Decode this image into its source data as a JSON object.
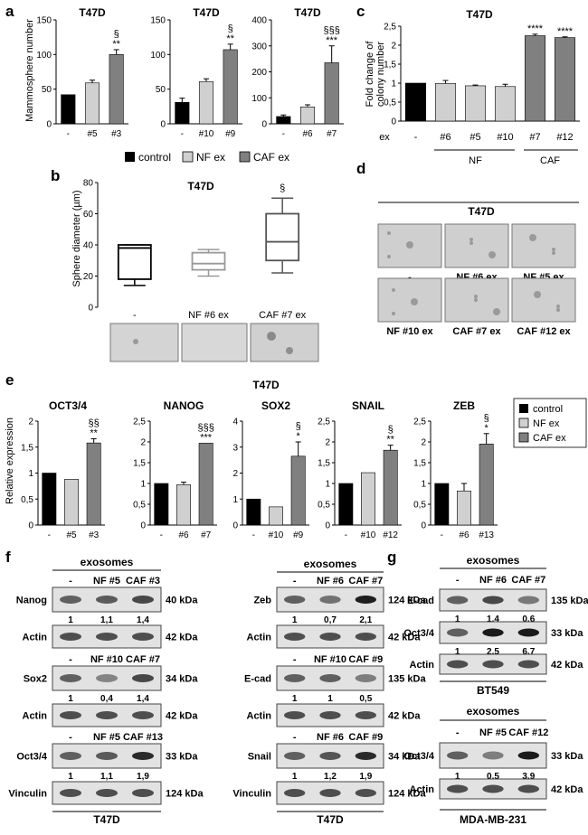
{
  "colors": {
    "control": "#000000",
    "nf": "#d0d0d0",
    "caf": "#808080",
    "blot_bg": "#e2e2e2",
    "band": "#1a1a1a"
  },
  "legend": {
    "control": "control",
    "nf": "NF ex",
    "caf": "CAF ex"
  },
  "panel_a": {
    "letter": "a",
    "ylabel": "Mammosphere number",
    "charts": [
      {
        "title": "T47D",
        "type": "bar",
        "categories": [
          "-",
          "#5",
          "#3"
        ],
        "values": [
          42,
          59,
          100
        ],
        "errors": [
          0,
          4,
          7
        ],
        "ylim": [
          0,
          150
        ],
        "ticks": [
          0,
          50,
          100,
          150
        ],
        "annot": [
          "",
          "",
          "**"
        ],
        "sig": [
          "",
          "",
          "§"
        ]
      },
      {
        "title": "T47D",
        "type": "bar",
        "categories": [
          "-",
          "#10",
          "#9"
        ],
        "values": [
          31,
          61,
          107
        ],
        "errors": [
          6,
          4,
          8
        ],
        "ylim": [
          0,
          150
        ],
        "ticks": [
          0,
          50,
          100,
          150
        ],
        "annot": [
          "",
          "",
          "**"
        ],
        "sig": [
          "",
          "",
          "§"
        ]
      },
      {
        "title": "T47D",
        "type": "bar",
        "categories": [
          "-",
          "#6",
          "#7"
        ],
        "values": [
          28,
          65,
          235
        ],
        "errors": [
          6,
          8,
          65
        ],
        "ylim": [
          0,
          400
        ],
        "ticks": [
          0,
          100,
          200,
          300,
          400
        ],
        "annot": [
          "",
          "",
          "***"
        ],
        "sig": [
          "",
          "",
          "§§§"
        ]
      }
    ]
  },
  "panel_b": {
    "letter": "b",
    "title": "T47D",
    "ylabel": "Sphere diameter (µm)",
    "ylim": [
      0,
      80
    ],
    "ticks": [
      0,
      20,
      40,
      60,
      80
    ],
    "groups": [
      {
        "label": "-",
        "min": 14,
        "q1": 18,
        "median": 38,
        "q3": 40,
        "max": 40
      },
      {
        "label": "NF #6 ex",
        "min": 20,
        "q1": 24,
        "median": 28,
        "q3": 35,
        "max": 37
      },
      {
        "label": "CAF #7 ex",
        "min": 22,
        "q1": 30,
        "median": 42,
        "q3": 60,
        "max": 70
      }
    ],
    "sig": "§"
  },
  "panel_c": {
    "letter": "c",
    "title": "T47D",
    "ylabel": "Fold change of colony number",
    "type": "bar",
    "ex_label": "ex",
    "categories": [
      "-",
      "#6",
      "#5",
      "#10",
      "#7",
      "#12"
    ],
    "values": [
      1.0,
      0.99,
      0.93,
      0.91,
      2.25,
      2.2
    ],
    "errors": [
      0,
      0.08,
      0.02,
      0.06,
      0.04,
      0.02
    ],
    "ylim": [
      0,
      2.5
    ],
    "ticks": [
      "0",
      "0,5",
      "1",
      "1,5",
      "2",
      "2,5"
    ],
    "annot": [
      "",
      "",
      "",
      "",
      "****",
      "****"
    ],
    "groups": [
      "NF",
      "CAF"
    ]
  },
  "panel_d": {
    "letter": "d",
    "title": "T47D",
    "labels": [
      "-",
      "NF #6 ex",
      "NF #5 ex",
      "NF #10 ex",
      "CAF #7 ex",
      "CAF #12 ex"
    ]
  },
  "panel_e": {
    "letter": "e",
    "title": "T47D",
    "ylabel": "Relative expression",
    "charts": [
      {
        "title": "OCT3/4",
        "categories": [
          "-",
          "#5",
          "#3"
        ],
        "values": [
          1.0,
          0.88,
          1.58
        ],
        "errors": [
          0,
          0,
          0.08
        ],
        "ylim": [
          0,
          2
        ],
        "ticks": [
          "0",
          "0,5",
          "1",
          "1,5",
          "2"
        ],
        "annot": "**",
        "sig": "§§"
      },
      {
        "title": "NANOG",
        "categories": [
          "-",
          "#6",
          "#7"
        ],
        "values": [
          1.0,
          0.97,
          1.97
        ],
        "errors": [
          0,
          0.06,
          0
        ],
        "ylim": [
          0,
          2.5
        ],
        "ticks": [
          "0",
          "0,5",
          "1",
          "1,5",
          "2",
          "2,5"
        ],
        "annot": "***",
        "sig": "§§§"
      },
      {
        "title": "SOX2",
        "categories": [
          "-",
          "#10",
          "#9"
        ],
        "values": [
          1.0,
          0.7,
          2.65
        ],
        "errors": [
          0,
          0,
          0.55
        ],
        "ylim": [
          0,
          4
        ],
        "ticks": [
          "0",
          "1",
          "2",
          "3",
          "4"
        ],
        "annot": "*",
        "sig": "§"
      },
      {
        "title": "SNAIL",
        "categories": [
          "-",
          "#10",
          "#12"
        ],
        "values": [
          1.0,
          1.26,
          1.8
        ],
        "errors": [
          0,
          0,
          0.12
        ],
        "ylim": [
          0,
          2.5
        ],
        "ticks": [
          "0",
          "0,5",
          "1",
          "1,5",
          "2",
          "2,5"
        ],
        "annot": "**",
        "sig": "§"
      },
      {
        "title": "ZEB",
        "categories": [
          "-",
          "#6",
          "#13"
        ],
        "values": [
          1.0,
          0.82,
          1.95
        ],
        "errors": [
          0,
          0.18,
          0.25
        ],
        "ylim": [
          0,
          2.5
        ],
        "ticks": [
          "0",
          "0,5",
          "1",
          "1,5",
          "2",
          "2,5"
        ],
        "annot": "*",
        "sig": "§"
      }
    ]
  },
  "panel_f": {
    "letter": "f",
    "header": "exosomes",
    "cell_line": "T47D",
    "col1": [
      {
        "conds": [
          "-",
          "NF #5",
          "CAF #3"
        ],
        "target": "Nanog",
        "kda": "40 kDa",
        "quant": [
          "1",
          "1,1",
          "1,4"
        ],
        "ctrl": "Actin",
        "ctrl_kda": "42 kDa"
      },
      {
        "conds": [
          "-",
          "NF #10",
          "CAF #7"
        ],
        "target": "Sox2",
        "kda": "34 kDa",
        "quant": [
          "1",
          "0,4",
          "1,4"
        ],
        "ctrl": "Actin",
        "ctrl_kda": "42 kDa"
      },
      {
        "conds": [
          "-",
          "NF #5",
          "CAF #13"
        ],
        "target": "Oct3/4",
        "kda": "33 kDa",
        "quant": [
          "1",
          "1,1",
          "1,9"
        ],
        "ctrl": "Vinculin",
        "ctrl_kda": "124 kDa"
      }
    ],
    "col2": [
      {
        "conds": [
          "-",
          "NF #6",
          "CAF #7"
        ],
        "target": "Zeb",
        "kda": "124 kDa",
        "quant": [
          "1",
          "0,7",
          "2,1"
        ],
        "ctrl": "Actin",
        "ctrl_kda": "42 kDa"
      },
      {
        "conds": [
          "-",
          "NF #10",
          "CAF #9"
        ],
        "target": "E-cad",
        "kda": "135 kDa",
        "quant": [
          "1",
          "1",
          "0,5"
        ],
        "ctrl": "Actin",
        "ctrl_kda": "42 kDa"
      },
      {
        "conds": [
          "-",
          "NF #6",
          "CAF #9"
        ],
        "target": "Snail",
        "kda": "34 kDa",
        "quant": [
          "1",
          "1,2",
          "1,9"
        ],
        "ctrl": "Vinculin",
        "ctrl_kda": "124 kDa"
      }
    ]
  },
  "panel_g": {
    "letter": "g",
    "header": "exosomes",
    "blot1": {
      "conds": [
        "-",
        "NF #6",
        "CAF #7"
      ],
      "rows": [
        {
          "target": "E-cad",
          "kda": "135 kDa",
          "quant": [
            "1",
            "1,4",
            "0,6"
          ]
        },
        {
          "target": "Oct3/4",
          "kda": "33 kDa",
          "quant": [
            "1",
            "2,5",
            "6,7"
          ]
        },
        {
          "target": "Actin",
          "kda": "42 kDa",
          "quant": []
        }
      ],
      "cell_line": "BT549"
    },
    "blot2": {
      "conds": [
        "-",
        "NF #5",
        "CAF #12"
      ],
      "rows": [
        {
          "target": "Oct3/4",
          "kda": "33 kDa",
          "quant": [
            "1",
            "0,5",
            "3,9"
          ]
        },
        {
          "target": "Actin",
          "kda": "42 kDa",
          "quant": []
        }
      ],
      "cell_line": "MDA-MB-231"
    }
  }
}
